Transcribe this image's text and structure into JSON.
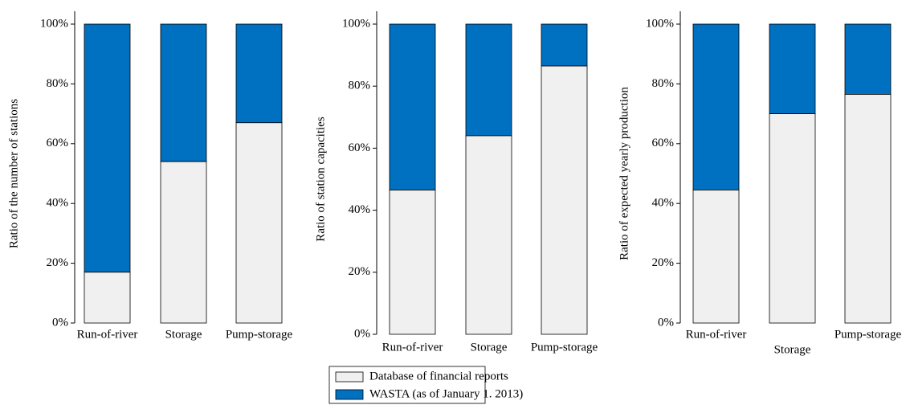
{
  "chart_data": [
    {
      "type": "stacked-bar",
      "y_label": "Ratio of the number of stations",
      "categories": [
        "Run-of-river",
        "Storage",
        "Pump-storage"
      ],
      "series": [
        {
          "name": "Database of financial reports",
          "color": "#f0f0f0",
          "values": [
            17,
            54,
            67
          ]
        },
        {
          "name": "WASTA (as of January 1. 2013)",
          "color": "#0070c0",
          "values": [
            83,
            46,
            33
          ]
        }
      ],
      "ylim": [
        0,
        100
      ],
      "yticks": [
        {
          "value": 0,
          "label": "0%"
        },
        {
          "value": 20,
          "label": "20%"
        },
        {
          "value": 40,
          "label": "40%"
        },
        {
          "value": 60,
          "label": "60%"
        },
        {
          "value": 80,
          "label": "80%"
        },
        {
          "value": 100,
          "label": "100%"
        }
      ]
    },
    {
      "type": "stacked-bar",
      "y_label": "Ratio of station capacities",
      "categories": [
        "Run-of-river",
        "Storage",
        "Pump-storage"
      ],
      "series": [
        {
          "name": "Database of financial reports",
          "color": "#f0f0f0",
          "values": [
            46.5,
            64,
            86.5
          ]
        },
        {
          "name": "WASTA (as of January 1. 2013)",
          "color": "#0070c0",
          "values": [
            53.5,
            36,
            13.5
          ]
        }
      ],
      "ylim": [
        0,
        100
      ],
      "yticks": [
        {
          "value": 0,
          "label": "0%"
        },
        {
          "value": 20,
          "label": "20%"
        },
        {
          "value": 40,
          "label": "40%"
        },
        {
          "value": 60,
          "label": "60%"
        },
        {
          "value": 80,
          "label": "80%"
        },
        {
          "value": 100,
          "label": "100%"
        }
      ]
    },
    {
      "type": "stacked-bar",
      "y_label": "Ratio of expected yearly production",
      "categories": [
        "Run-of-river",
        "Storage",
        "Pump-storage"
      ],
      "series": [
        {
          "name": "Database of financial reports",
          "color": "#f0f0f0",
          "values": [
            44.5,
            70,
            76.5
          ]
        },
        {
          "name": "WASTA (as of January 1. 2013)",
          "color": "#0070c0",
          "values": [
            55.5,
            30,
            23.5
          ]
        }
      ],
      "ylim": [
        0,
        100
      ],
      "yticks": [
        {
          "value": 0,
          "label": "0%"
        },
        {
          "value": 20,
          "label": "20%"
        },
        {
          "value": 40,
          "label": "40%"
        },
        {
          "value": 60,
          "label": "60%"
        },
        {
          "value": 80,
          "label": "80%"
        },
        {
          "value": 100,
          "label": "100%"
        }
      ]
    }
  ]
}
